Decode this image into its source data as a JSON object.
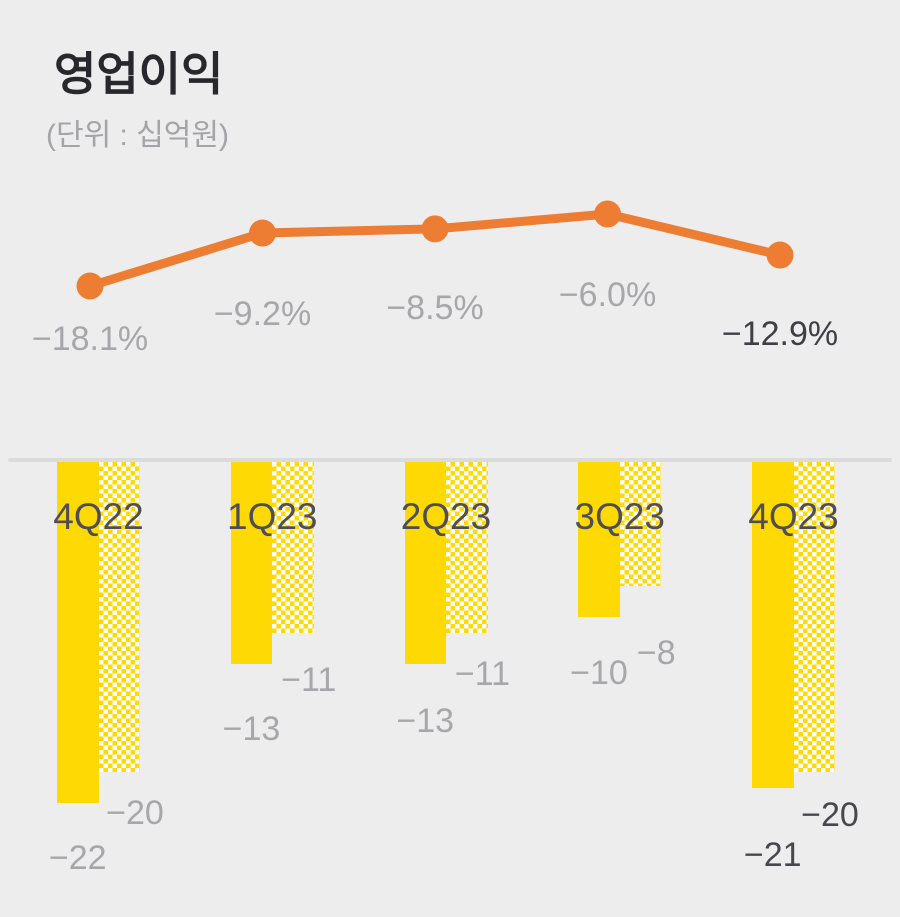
{
  "header": {
    "title": "영업이익",
    "subtitle": "(단위 : 십억원)"
  },
  "chart_data": {
    "type": "combo",
    "title": "영업이익",
    "unit_label": "(단위 : 십억원)",
    "legend": "none",
    "grid": false,
    "background": "#EDEDED",
    "categories": [
      "4Q22",
      "1Q23",
      "2Q23",
      "3Q23",
      "4Q23"
    ],
    "line": {
      "type": "line",
      "values": [
        -18.1,
        -9.2,
        -8.5,
        -6.0,
        -12.9
      ],
      "labels": [
        "−18.1%",
        "−9.2%",
        "−8.5%",
        "−6.0%",
        "−12.9%"
      ],
      "color": "#EC7D33",
      "marker": "circle"
    },
    "bar_series": [
      {
        "name": "solid-bar",
        "style": "solid",
        "values": [
          -22,
          -13,
          -13,
          -10,
          -21
        ],
        "labels": [
          "−22",
          "−13",
          "−13",
          "−10",
          "−21"
        ]
      },
      {
        "name": "pattern-bar",
        "style": "checker",
        "values": [
          -20,
          -11,
          -11,
          -8,
          -20
        ],
        "labels": [
          "−20",
          "−11",
          "−11",
          "−8",
          "−20"
        ]
      }
    ],
    "bar_color": "#FFD904",
    "ylim_bars": [
      -24,
      0
    ],
    "emphasized_category_index": 4,
    "label_colors": {
      "normal": "#A7A7AB",
      "emphasis": "#47474D",
      "category": "#4E4E54"
    }
  }
}
